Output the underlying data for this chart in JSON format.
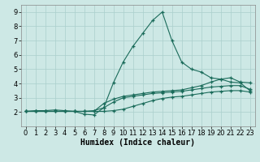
{
  "xlabel": "Humidex (Indice chaleur)",
  "bg_color": "#cde8e5",
  "grid_color": "#aacfcc",
  "line_color": "#1a6b5a",
  "xlim": [
    -0.5,
    23.5
  ],
  "ylim": [
    1.0,
    9.5
  ],
  "xticks": [
    0,
    1,
    2,
    3,
    4,
    5,
    6,
    7,
    8,
    9,
    10,
    11,
    12,
    13,
    14,
    15,
    16,
    17,
    18,
    19,
    20,
    21,
    22,
    23
  ],
  "yticks": [
    2,
    3,
    4,
    5,
    6,
    7,
    8,
    9
  ],
  "lines": [
    {
      "x": [
        0,
        1,
        2,
        3,
        4,
        5,
        6,
        7,
        8,
        9,
        10,
        11,
        12,
        13,
        14,
        15,
        16,
        17,
        18,
        19,
        20,
        21,
        22,
        23
      ],
      "y": [
        2.05,
        2.1,
        2.1,
        2.15,
        2.1,
        2.05,
        1.85,
        1.8,
        2.3,
        4.05,
        5.5,
        6.6,
        7.5,
        8.4,
        9.0,
        7.0,
        5.5,
        5.0,
        4.8,
        4.4,
        4.3,
        4.1,
        4.05,
        3.5
      ]
    },
    {
      "x": [
        0,
        1,
        2,
        3,
        4,
        5,
        6,
        7,
        8,
        9,
        10,
        11,
        12,
        13,
        14,
        15,
        16,
        17,
        18,
        19,
        20,
        21,
        22,
        23
      ],
      "y": [
        2.05,
        2.05,
        2.05,
        2.05,
        2.05,
        2.05,
        2.05,
        2.05,
        2.6,
        2.9,
        3.1,
        3.2,
        3.3,
        3.4,
        3.45,
        3.5,
        3.55,
        3.7,
        3.85,
        4.1,
        4.3,
        4.4,
        4.1,
        4.05
      ]
    },
    {
      "x": [
        0,
        1,
        2,
        3,
        4,
        5,
        6,
        7,
        8,
        9,
        10,
        11,
        12,
        13,
        14,
        15,
        16,
        17,
        18,
        19,
        20,
        21,
        22,
        23
      ],
      "y": [
        2.05,
        2.05,
        2.05,
        2.05,
        2.05,
        2.05,
        2.05,
        2.1,
        2.3,
        2.7,
        3.0,
        3.1,
        3.2,
        3.3,
        3.35,
        3.4,
        3.45,
        3.55,
        3.65,
        3.75,
        3.8,
        3.85,
        3.85,
        3.6
      ]
    },
    {
      "x": [
        0,
        1,
        2,
        3,
        4,
        5,
        6,
        7,
        8,
        9,
        10,
        11,
        12,
        13,
        14,
        15,
        16,
        17,
        18,
        19,
        20,
        21,
        22,
        23
      ],
      "y": [
        2.05,
        2.05,
        2.05,
        2.05,
        2.05,
        2.05,
        2.05,
        2.05,
        2.05,
        2.1,
        2.2,
        2.4,
        2.6,
        2.8,
        2.95,
        3.05,
        3.1,
        3.2,
        3.3,
        3.4,
        3.45,
        3.5,
        3.5,
        3.4
      ]
    }
  ],
  "xlabel_fontsize": 7,
  "tick_fontsize": 6
}
